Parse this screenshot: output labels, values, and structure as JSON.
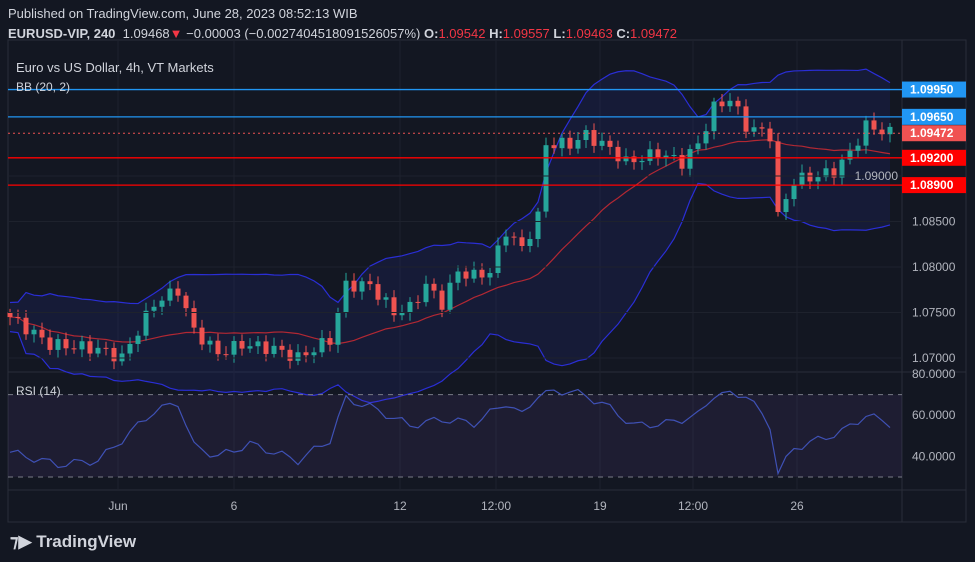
{
  "header": {
    "published": "Published on TradingView.com, June 28, 2023 08:52:13 WIB",
    "symbol": "EURUSD-VIP, 240",
    "last": "1.09468",
    "change": "−0.00003 (−0.0027404518091526057%)",
    "o_label": "O:",
    "o": "1.09542",
    "h_label": "H:",
    "h": "1.09557",
    "l_label": "L:",
    "l": "1.09463",
    "c_label": "C:",
    "c": "1.09472"
  },
  "legend": {
    "title": "Euro vs US Dollar, 4h, VT Markets",
    "bb": "BB (20, 2)",
    "rsi": "RSI (14)"
  },
  "brand": "TradingView",
  "colors": {
    "up": "#26a69a",
    "down": "#ef5350",
    "blue_line": "#2196f3",
    "red_line": "#ff0000",
    "bb": "#2a2ed6",
    "bb_basis": "#b22833"
  },
  "chart_data": [
    {
      "type": "candlestick",
      "title": "EURUSD 4h",
      "y_ticks": [
        "1.07000",
        "1.07500",
        "1.08000",
        "1.08500",
        "1.09000"
      ],
      "ylim": [
        1.0685,
        1.1025
      ],
      "x_ticks": [
        "Jun",
        "6",
        "12",
        "12:00",
        "19",
        "12:00",
        "26"
      ],
      "close_path": [
        [
          0,
          1.0745
        ],
        [
          5,
          1.0715
        ],
        [
          11,
          1.071
        ],
        [
          14,
          1.07
        ],
        [
          18,
          1.076
        ],
        [
          21,
          1.0775
        ],
        [
          23,
          1.073
        ],
        [
          26,
          1.0705
        ],
        [
          29,
          1.0715
        ],
        [
          33,
          1.071
        ],
        [
          36,
          1.07
        ],
        [
          40,
          1.072
        ],
        [
          42,
          1.078
        ],
        [
          45,
          1.078
        ],
        [
          48,
          1.075
        ],
        [
          50,
          1.0755
        ],
        [
          52,
          1.078
        ],
        [
          54,
          1.076
        ],
        [
          56,
          1.0795
        ],
        [
          58,
          1.079
        ],
        [
          60,
          1.0795
        ],
        [
          62,
          1.084
        ],
        [
          64,
          1.082
        ],
        [
          66,
          1.0855
        ],
        [
          67,
          1.0935
        ],
        [
          70,
          1.0935
        ],
        [
          72,
          1.0945
        ],
        [
          75,
          1.093
        ],
        [
          77,
          1.0915
        ],
        [
          81,
          1.0925
        ],
        [
          84,
          1.0915
        ],
        [
          86,
          1.0935
        ],
        [
          88,
          1.0975
        ],
        [
          90,
          1.0985
        ],
        [
          92,
          1.0955
        ],
        [
          95,
          1.0945
        ],
        [
          96,
          1.0855
        ],
        [
          98,
          1.0895
        ],
        [
          101,
          1.09
        ],
        [
          103,
          1.0905
        ],
        [
          105,
          1.0925
        ],
        [
          107,
          1.0955
        ],
        [
          109,
          1.095
        ],
        [
          110,
          1.0947
        ]
      ],
      "levels": [
        {
          "value": 1.0995,
          "label": "1.09950",
          "kind": "resistance"
        },
        {
          "value": 1.0965,
          "label": "1.09650",
          "kind": "resistance"
        },
        {
          "value": 1.0947,
          "label": "1.09472",
          "kind": "last"
        },
        {
          "value": 1.092,
          "label": "1.09200",
          "kind": "support"
        },
        {
          "value": 1.089,
          "label": "1.08900",
          "kind": "support"
        }
      ],
      "indicator": "BB (20, 2)"
    },
    {
      "type": "line",
      "title": "RSI (14)",
      "y_ticks": [
        "80.0000",
        "60.0000",
        "40.0000"
      ],
      "ylim": [
        30,
        80
      ],
      "bands": [
        30,
        70
      ],
      "path": [
        [
          0,
          42
        ],
        [
          6,
          36
        ],
        [
          11,
          38
        ],
        [
          14,
          48
        ],
        [
          18,
          62
        ],
        [
          21,
          66
        ],
        [
          23,
          45
        ],
        [
          26,
          40
        ],
        [
          30,
          46
        ],
        [
          36,
          38
        ],
        [
          40,
          48
        ],
        [
          42,
          68
        ],
        [
          45,
          64
        ],
        [
          50,
          55
        ],
        [
          54,
          58
        ],
        [
          58,
          56
        ],
        [
          62,
          66
        ],
        [
          64,
          60
        ],
        [
          66,
          70
        ],
        [
          70,
          72
        ],
        [
          74,
          66
        ],
        [
          78,
          55
        ],
        [
          82,
          56
        ],
        [
          86,
          60
        ],
        [
          88,
          70
        ],
        [
          92,
          70
        ],
        [
          95,
          55
        ],
        [
          96,
          32
        ],
        [
          98,
          44
        ],
        [
          101,
          48
        ],
        [
          104,
          52
        ],
        [
          107,
          60
        ],
        [
          110,
          56
        ]
      ]
    }
  ]
}
